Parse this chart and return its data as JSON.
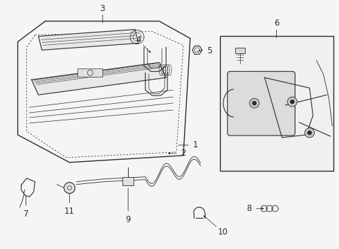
{
  "bg_color": "#f5f5f5",
  "line_color": "#2a2a2a",
  "label_color": "#111111",
  "fig_width": 4.9,
  "fig_height": 3.6,
  "dpi": 100
}
